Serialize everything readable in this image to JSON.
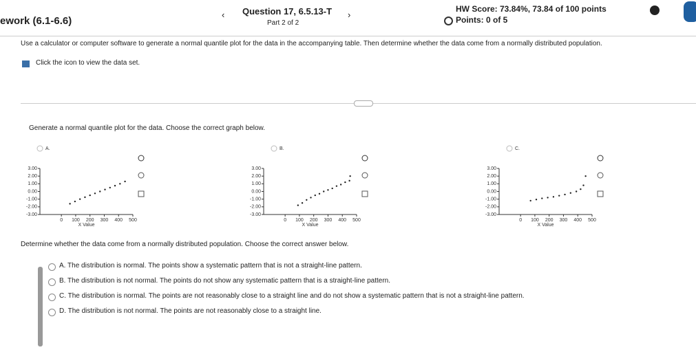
{
  "header": {
    "course": "ework (6.1-6.6)",
    "question": "Question 17, 6.5.13-T",
    "part": "Part 2 of 2",
    "hw_score": "HW Score: 73.84%, 73.84 of 100 points",
    "points": "Points: 0 of 5"
  },
  "instructions": "Use a calculator or computer software to generate a normal quantile plot for the data in the accompanying table. Then determine whether the data come from a normally distributed population.",
  "data_link": "Click the icon to view the data set.",
  "prompt1": "Generate a normal quantile plot for the data. Choose the correct graph below.",
  "graphs": [
    {
      "option": "A.",
      "type": "scatter",
      "x_label": "X Value",
      "xlim": [
        -150,
        500
      ],
      "ylim": [
        -3,
        3
      ],
      "xticks": [
        0,
        100,
        200,
        300,
        400,
        500
      ],
      "yticks": [
        {
          "value": 3,
          "label": "3.00"
        },
        {
          "value": 2,
          "label": "2.00"
        },
        {
          "value": 1,
          "label": "1.00"
        },
        {
          "value": 0,
          "label": "0.00"
        },
        {
          "value": -1,
          "label": "-1.00"
        },
        {
          "value": -2,
          "label": "-2.00"
        },
        {
          "value": -3,
          "label": "-3.00"
        }
      ],
      "x": [
        60,
        95,
        130,
        165,
        200,
        235,
        270,
        305,
        340,
        375,
        410,
        445
      ],
      "y": [
        -1.6,
        -1.3,
        -1.0,
        -0.75,
        -0.5,
        -0.25,
        0,
        0.25,
        0.5,
        0.75,
        1.0,
        1.3
      ]
    },
    {
      "option": "B.",
      "type": "scatter",
      "x_label": "X Value",
      "xlim": [
        -150,
        500
      ],
      "ylim": [
        -3,
        3
      ],
      "xticks": [
        0,
        100,
        200,
        300,
        400,
        500
      ],
      "yticks": [
        {
          "value": 3,
          "label": "3.00"
        },
        {
          "value": 2,
          "label": "2.00"
        },
        {
          "value": 1,
          "label": "1.00"
        },
        {
          "value": 0,
          "label": "0.00"
        },
        {
          "value": -1,
          "label": "-1.00"
        },
        {
          "value": -2,
          "label": "-2.00"
        },
        {
          "value": -3,
          "label": "-3.00"
        }
      ],
      "x": [
        90,
        120,
        150,
        180,
        210,
        240,
        270,
        300,
        330,
        360,
        390,
        420,
        450,
        455
      ],
      "y": [
        -1.8,
        -1.5,
        -1.1,
        -0.8,
        -0.5,
        -0.3,
        0,
        0.2,
        0.4,
        0.7,
        0.9,
        1.2,
        1.4,
        2.0
      ]
    },
    {
      "option": "C.",
      "type": "scatter",
      "x_label": "X Value",
      "xlim": [
        -150,
        500
      ],
      "ylim": [
        -3,
        3
      ],
      "xticks": [
        0,
        100,
        200,
        300,
        400,
        500
      ],
      "yticks": [
        {
          "value": 3,
          "label": "3.00"
        },
        {
          "value": 2,
          "label": "2.00"
        },
        {
          "value": 1,
          "label": "1.00"
        },
        {
          "value": 0,
          "label": "0.00"
        },
        {
          "value": -1,
          "label": "-1.00"
        },
        {
          "value": -2,
          "label": "-2.00"
        },
        {
          "value": -3,
          "label": "-3.00"
        }
      ],
      "x": [
        70,
        110,
        150,
        190,
        230,
        270,
        310,
        350,
        390,
        420,
        440,
        455
      ],
      "y": [
        -1.2,
        -1.05,
        -0.9,
        -0.8,
        -0.7,
        -0.55,
        -0.4,
        -0.2,
        0.0,
        0.3,
        0.8,
        2.0
      ]
    }
  ],
  "prompt2": "Determine whether the data come from a normally distributed population. Choose the correct answer below.",
  "answers": [
    "A.  The distribution is normal. The points show a systematic pattern that is not a straight-line pattern.",
    "B.  The distribution is not normal. The points do not show any systematic pattern that is a straight-line pattern.",
    "C.  The distribution is normal. The points are not reasonably close to a straight line and do not show a systematic pattern that is not a straight-line pattern.",
    "D.  The distribution is not normal. The points are not reasonably close to a straight line."
  ]
}
